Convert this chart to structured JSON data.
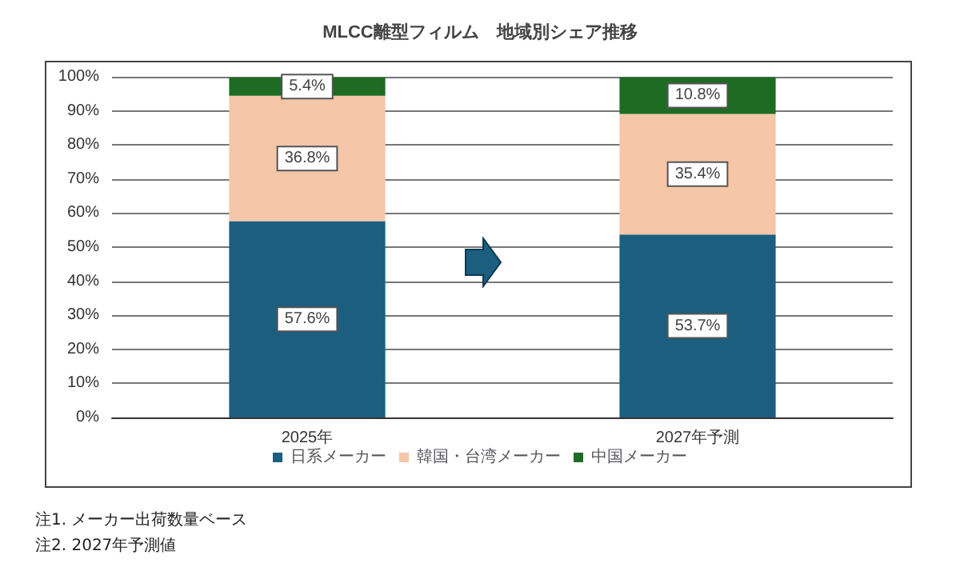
{
  "chart_data": {
    "type": "bar",
    "title": "MLCC離型フィルム　地域別シェア推移",
    "stacked": true,
    "categories": [
      "2025年",
      "2027年予測"
    ],
    "series": [
      {
        "name": "日系メーカー",
        "color": "#1b5e80",
        "values": [
          57.6,
          53.7
        ],
        "value_labels": [
          "57.6%",
          "53.7%"
        ]
      },
      {
        "name": "韓国・台湾メーカー",
        "color": "#f5c6a8",
        "values": [
          36.8,
          35.4
        ],
        "value_labels": [
          "36.8%",
          "35.4%"
        ]
      },
      {
        "name": "中国メーカー",
        "color": "#1e6b23",
        "values": [
          5.4,
          10.8
        ],
        "value_labels": [
          "5.4%",
          "10.8%"
        ]
      }
    ],
    "ylim": [
      0,
      100
    ],
    "yticks": [
      {
        "value": 0,
        "label": "0%"
      },
      {
        "value": 10,
        "label": "10%"
      },
      {
        "value": 20,
        "label": "20%"
      },
      {
        "value": 30,
        "label": "30%"
      },
      {
        "value": 40,
        "label": "40%"
      },
      {
        "value": 50,
        "label": "50%"
      },
      {
        "value": 60,
        "label": "60%"
      },
      {
        "value": 70,
        "label": "70%"
      },
      {
        "value": 80,
        "label": "80%"
      },
      {
        "value": 90,
        "label": "90%"
      },
      {
        "value": 100,
        "label": "100%"
      }
    ],
    "grid": "y",
    "legend": "bottom",
    "annotations": [
      "注1. メーカー出荷数量ベース",
      "注2. 2027年予測値"
    ]
  }
}
